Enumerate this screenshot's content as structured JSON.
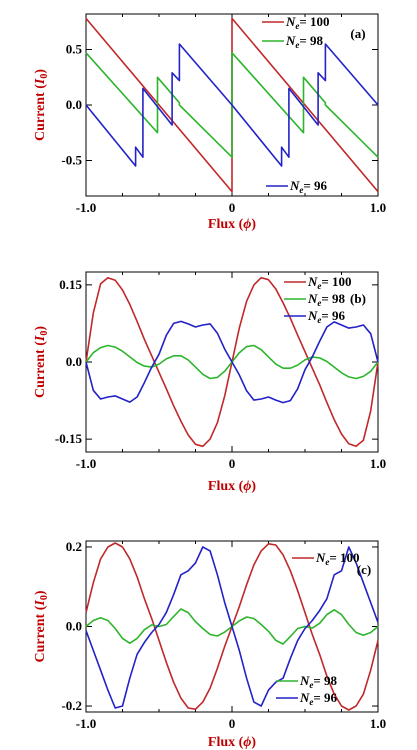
{
  "colors": {
    "red": "#c0282a",
    "green": "#2db52d",
    "blue": "#2222c8",
    "axis_text": "#c00000"
  },
  "chart_data": [
    {
      "type": "line",
      "panel_label": "(a)",
      "xlabel_prefix": "Flux (",
      "xlabel_symbol": "ϕ",
      "xlabel_suffix": ")",
      "ylabel_prefix": "Current (",
      "ylabel_symbol": "I",
      "ylabel_sub": "0",
      "ylabel_suffix": ")",
      "xlim": [
        -1.0,
        1.0
      ],
      "ylim": [
        -0.82,
        0.82
      ],
      "xticks": [
        "-1.0",
        "0",
        "1.0"
      ],
      "xtick_values": [
        -1,
        0,
        1
      ],
      "yticks": [
        "0.5",
        "0.0",
        "-0.5"
      ],
      "ytick_values": [
        0.5,
        0.0,
        -0.5
      ],
      "legend": [
        {
          "var": "N",
          "sub": "e",
          "eq": "= 100",
          "color": "#c0282a",
          "pos": "top-right"
        },
        {
          "var": "N",
          "sub": "e",
          "eq": "= 98",
          "color": "#2db52d",
          "pos": "top-right"
        },
        {
          "var": "N",
          "sub": "e",
          "eq": "= 96",
          "color": "#2222c8",
          "pos": "bottom-right"
        }
      ],
      "series": [
        {
          "color": "#c0282a",
          "x": [
            -1.0,
            0.0,
            0.0,
            1.0
          ],
          "y": [
            0.78,
            -0.78,
            0.78,
            -0.78
          ]
        },
        {
          "color": "#2db52d",
          "x": [
            -1.0,
            -0.51,
            -0.51,
            -0.36,
            -0.36,
            0.0,
            0.0,
            0.49,
            0.49,
            0.64,
            0.64,
            1.0
          ],
          "y": [
            0.47,
            -0.25,
            0.25,
            0.02,
            0.0,
            -0.47,
            0.47,
            -0.25,
            0.25,
            0.02,
            0.0,
            -0.47
          ]
        },
        {
          "color": "#2222c8",
          "x": [
            -1.0,
            -0.66,
            -0.66,
            -0.61,
            -0.61,
            -0.41,
            -0.41,
            -0.36,
            -0.36,
            0.0,
            0.34,
            0.34,
            0.39,
            0.39,
            0.59,
            0.59,
            0.64,
            0.64,
            1.0
          ],
          "y": [
            0.0,
            -0.55,
            -0.38,
            -0.47,
            0.15,
            -0.18,
            0.29,
            0.22,
            0.55,
            0.0,
            -0.55,
            -0.38,
            -0.47,
            0.15,
            -0.18,
            0.29,
            0.22,
            0.55,
            0.0
          ]
        }
      ]
    },
    {
      "type": "line",
      "panel_label": "(b)",
      "xlabel_prefix": "Flux (",
      "xlabel_symbol": "ϕ",
      "xlabel_suffix": ")",
      "ylabel_prefix": "Current (",
      "ylabel_symbol": "I",
      "ylabel_sub": "0",
      "ylabel_suffix": ")",
      "xlim": [
        -1.0,
        1.0
      ],
      "ylim": [
        -0.175,
        0.175
      ],
      "xticks": [
        "-1.0",
        "0",
        "1.0"
      ],
      "xtick_values": [
        -1,
        0,
        1
      ],
      "yticks": [
        "0.15",
        "0.0",
        "-0.15"
      ],
      "ytick_values": [
        0.15,
        0.0,
        -0.15
      ],
      "legend": [
        {
          "var": "N",
          "sub": "e",
          "eq": "= 100",
          "color": "#c0282a",
          "pos": "top-right"
        },
        {
          "var": "N",
          "sub": "e",
          "eq": "= 98",
          "color": "#2db52d",
          "pos": "top-right"
        },
        {
          "var": "N",
          "sub": "e",
          "eq": "= 96",
          "color": "#2222c8",
          "pos": "top-right"
        }
      ],
      "series": [
        {
          "color": "#c0282a",
          "x": [
            -1.0,
            -0.95,
            -0.9,
            -0.85,
            -0.8,
            -0.75,
            -0.7,
            -0.65,
            -0.6,
            -0.55,
            -0.5,
            -0.45,
            -0.4,
            -0.35,
            -0.3,
            -0.25,
            -0.2,
            -0.15,
            -0.1,
            -0.05,
            0.0,
            0.05,
            0.1,
            0.15,
            0.2,
            0.25,
            0.3,
            0.35,
            0.4,
            0.45,
            0.5,
            0.55,
            0.6,
            0.65,
            0.7,
            0.75,
            0.8,
            0.85,
            0.9,
            0.95,
            1.0
          ],
          "y": [
            0.0,
            0.095,
            0.152,
            0.164,
            0.159,
            0.14,
            0.112,
            0.079,
            0.044,
            0.012,
            -0.02,
            -0.052,
            -0.085,
            -0.115,
            -0.142,
            -0.16,
            -0.164,
            -0.15,
            -0.118,
            -0.066,
            0.0,
            0.066,
            0.118,
            0.15,
            0.164,
            0.16,
            0.142,
            0.115,
            0.085,
            0.052,
            0.02,
            -0.012,
            -0.044,
            -0.079,
            -0.112,
            -0.14,
            -0.159,
            -0.164,
            -0.152,
            -0.095,
            0.0
          ]
        },
        {
          "color": "#2db52d",
          "x": [
            -1.0,
            -0.95,
            -0.9,
            -0.85,
            -0.8,
            -0.75,
            -0.7,
            -0.65,
            -0.6,
            -0.55,
            -0.5,
            -0.45,
            -0.4,
            -0.35,
            -0.3,
            -0.25,
            -0.2,
            -0.15,
            -0.1,
            -0.05,
            0.0,
            0.05,
            0.1,
            0.15,
            0.2,
            0.25,
            0.3,
            0.35,
            0.4,
            0.45,
            0.5,
            0.55,
            0.6,
            0.65,
            0.7,
            0.75,
            0.8,
            0.85,
            0.9,
            0.95,
            1.0
          ],
          "y": [
            0.0,
            0.018,
            0.028,
            0.032,
            0.029,
            0.021,
            0.01,
            -0.001,
            -0.008,
            -0.01,
            -0.004,
            0.006,
            0.012,
            0.012,
            0.004,
            -0.01,
            -0.024,
            -0.032,
            -0.03,
            -0.018,
            0.0,
            0.018,
            0.03,
            0.032,
            0.024,
            0.01,
            -0.004,
            -0.012,
            -0.012,
            -0.006,
            0.004,
            0.01,
            0.008,
            0.001,
            -0.01,
            -0.021,
            -0.029,
            -0.032,
            -0.028,
            -0.018,
            0.0
          ]
        },
        {
          "color": "#2222c8",
          "x": [
            -1.0,
            -0.95,
            -0.9,
            -0.85,
            -0.8,
            -0.75,
            -0.7,
            -0.65,
            -0.6,
            -0.55,
            -0.5,
            -0.45,
            -0.4,
            -0.35,
            -0.3,
            -0.25,
            -0.2,
            -0.15,
            -0.1,
            -0.05,
            0.0,
            0.05,
            0.1,
            0.15,
            0.2,
            0.25,
            0.3,
            0.35,
            0.4,
            0.45,
            0.5,
            0.55,
            0.6,
            0.65,
            0.7,
            0.75,
            0.8,
            0.85,
            0.9,
            0.95,
            1.0
          ],
          "y": [
            0.0,
            -0.055,
            -0.072,
            -0.068,
            -0.066,
            -0.072,
            -0.078,
            -0.068,
            -0.04,
            -0.01,
            0.015,
            0.052,
            0.075,
            0.079,
            0.074,
            0.068,
            0.072,
            0.074,
            0.056,
            0.025,
            0.0,
            -0.025,
            -0.056,
            -0.074,
            -0.072,
            -0.068,
            -0.074,
            -0.079,
            -0.075,
            -0.052,
            -0.015,
            0.01,
            0.04,
            0.068,
            0.078,
            0.072,
            0.066,
            0.068,
            0.072,
            0.055,
            0.0
          ]
        }
      ]
    },
    {
      "type": "line",
      "panel_label": "(c)",
      "xlabel_prefix": "Flux (",
      "xlabel_symbol": "ϕ",
      "xlabel_suffix": ")",
      "ylabel_prefix": "Current (",
      "ylabel_symbol": "I",
      "ylabel_sub": "0",
      "ylabel_suffix": ")",
      "xlim": [
        -1.0,
        1.0
      ],
      "ylim": [
        -0.215,
        0.215
      ],
      "xticks": [
        "-1.0",
        "0",
        "1.0"
      ],
      "xtick_values": [
        -1,
        0,
        1
      ],
      "yticks": [
        "0.2",
        "0.0",
        "-0.2"
      ],
      "ytick_values": [
        0.2,
        0.0,
        -0.2
      ],
      "legend": [
        {
          "var": "N",
          "sub": "e",
          "eq": "= 100",
          "color": "#c0282a",
          "pos": "top-right"
        },
        {
          "var": "N",
          "sub": "e",
          "eq": "= 98",
          "color": "#2db52d",
          "pos": "bottom-right"
        },
        {
          "var": "N",
          "sub": "e",
          "eq": "= 96",
          "color": "#2222c8",
          "pos": "bottom-right"
        }
      ],
      "series": [
        {
          "color": "#c0282a",
          "x": [
            -1.0,
            -0.95,
            -0.9,
            -0.85,
            -0.8,
            -0.75,
            -0.7,
            -0.65,
            -0.6,
            -0.55,
            -0.5,
            -0.45,
            -0.4,
            -0.35,
            -0.3,
            -0.25,
            -0.2,
            -0.15,
            -0.1,
            -0.05,
            0.0,
            0.05,
            0.1,
            0.15,
            0.2,
            0.25,
            0.3,
            0.35,
            0.4,
            0.45,
            0.5,
            0.55,
            0.6,
            0.65,
            0.7,
            0.75,
            0.8,
            0.85,
            0.9,
            0.95,
            1.0
          ],
          "y": [
            0.035,
            0.11,
            0.17,
            0.2,
            0.21,
            0.2,
            0.17,
            0.125,
            0.07,
            0.02,
            -0.035,
            -0.09,
            -0.14,
            -0.18,
            -0.205,
            -0.208,
            -0.19,
            -0.155,
            -0.105,
            -0.05,
            0.0,
            0.05,
            0.105,
            0.155,
            0.19,
            0.208,
            0.205,
            0.18,
            0.14,
            0.09,
            0.035,
            -0.02,
            -0.07,
            -0.125,
            -0.17,
            -0.2,
            -0.21,
            -0.2,
            -0.17,
            -0.11,
            -0.035
          ]
        },
        {
          "color": "#2db52d",
          "x": [
            -1.0,
            -0.95,
            -0.9,
            -0.85,
            -0.8,
            -0.75,
            -0.7,
            -0.65,
            -0.6,
            -0.55,
            -0.5,
            -0.45,
            -0.4,
            -0.35,
            -0.3,
            -0.25,
            -0.2,
            -0.15,
            -0.1,
            -0.05,
            0.0,
            0.05,
            0.1,
            0.15,
            0.2,
            0.25,
            0.3,
            0.35,
            0.4,
            0.45,
            0.5,
            0.55,
            0.6,
            0.65,
            0.7,
            0.75,
            0.8,
            0.85,
            0.9,
            0.95,
            1.0
          ],
          "y": [
            0.0,
            0.015,
            0.022,
            0.015,
            -0.005,
            -0.03,
            -0.042,
            -0.03,
            -0.008,
            0.004,
            0.0,
            0.005,
            0.025,
            0.044,
            0.035,
            0.012,
            -0.005,
            -0.02,
            -0.024,
            -0.014,
            0.0,
            0.014,
            0.024,
            0.02,
            0.005,
            -0.012,
            -0.035,
            -0.044,
            -0.025,
            -0.005,
            0.0,
            -0.004,
            0.008,
            0.03,
            0.042,
            0.03,
            0.005,
            -0.015,
            -0.022,
            -0.015,
            0.0
          ]
        },
        {
          "color": "#2222c8",
          "x": [
            -1.0,
            -0.95,
            -0.9,
            -0.85,
            -0.8,
            -0.75,
            -0.7,
            -0.65,
            -0.6,
            -0.55,
            -0.5,
            -0.45,
            -0.4,
            -0.35,
            -0.3,
            -0.25,
            -0.2,
            -0.15,
            -0.1,
            -0.05,
            0.0,
            0.05,
            0.1,
            0.15,
            0.2,
            0.25,
            0.3,
            0.35,
            0.4,
            0.45,
            0.5,
            0.55,
            0.6,
            0.65,
            0.7,
            0.75,
            0.8,
            0.85,
            0.9,
            0.95,
            1.0
          ],
          "y": [
            -0.01,
            -0.06,
            -0.11,
            -0.16,
            -0.205,
            -0.2,
            -0.13,
            -0.07,
            -0.04,
            -0.015,
            0.005,
            0.035,
            0.08,
            0.13,
            0.14,
            0.16,
            0.2,
            0.19,
            0.13,
            0.06,
            0.0,
            -0.06,
            -0.13,
            -0.19,
            -0.2,
            -0.16,
            -0.14,
            -0.13,
            -0.08,
            -0.035,
            -0.005,
            0.015,
            0.04,
            0.07,
            0.13,
            0.14,
            0.2,
            0.16,
            0.11,
            0.06,
            0.01
          ]
        }
      ]
    }
  ]
}
